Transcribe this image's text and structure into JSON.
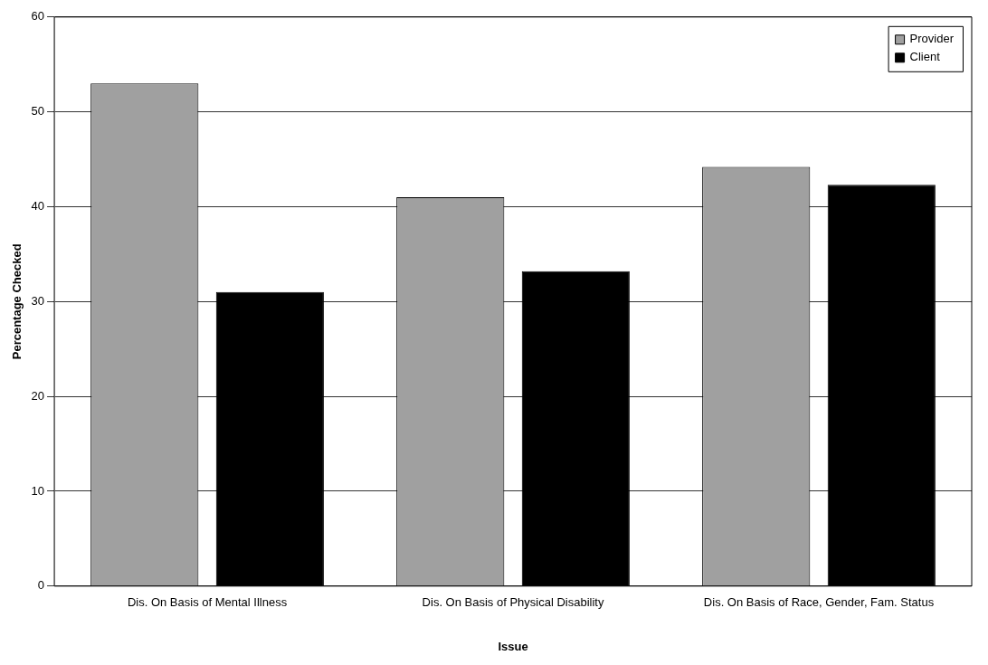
{
  "chart_data": {
    "type": "bar",
    "xlabel": "Issue",
    "ylabel": "Percentage Checked",
    "categories": [
      "Dis. On Basis of Mental Illness",
      "Dis. On Basis of Physical Disability",
      "Dis. On Basis of Race, Gender, Fam. Status"
    ],
    "series": [
      {
        "name": "Provider",
        "color": "#a0a0a0",
        "values": [
          53,
          41,
          44.2
        ]
      },
      {
        "name": "Client",
        "color": "#000000",
        "values": [
          31,
          33.2,
          42.3
        ]
      }
    ],
    "ylim": [
      0,
      60
    ],
    "yticks": [
      0,
      10,
      20,
      30,
      40,
      50,
      60
    ],
    "grid": "y",
    "legend": "top right"
  }
}
